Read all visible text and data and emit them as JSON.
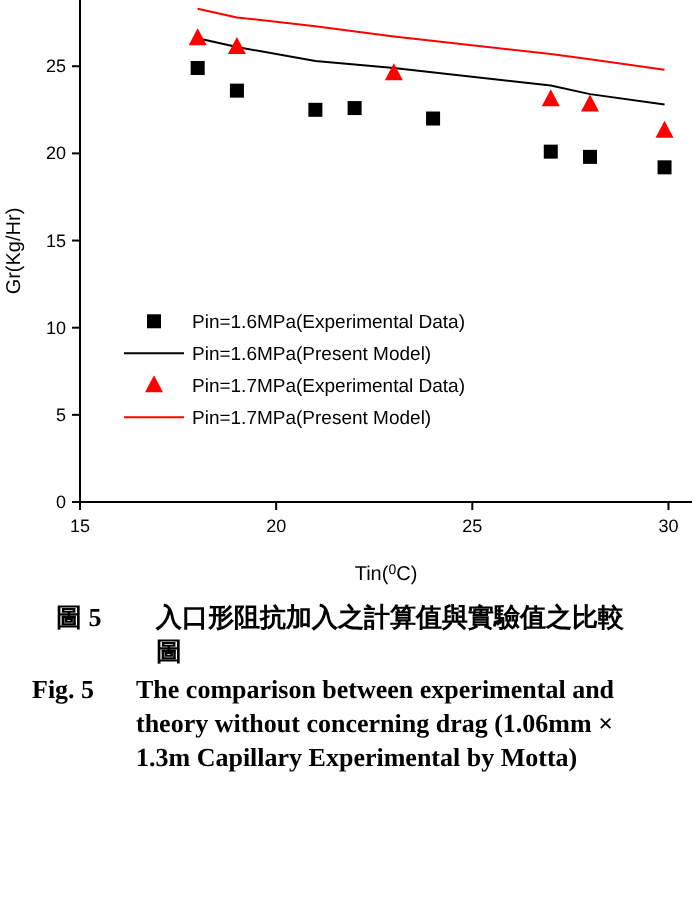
{
  "chart_data": {
    "type": "scatter",
    "xlabel": "Tin($^{0}$C)",
    "ylabel": "Gr(Kg/Hr)",
    "xlim": [
      15,
      30.6
    ],
    "xticks": [
      15,
      20,
      25,
      30
    ],
    "ylim": [
      0,
      28.8
    ],
    "yticks": [
      0,
      5,
      10,
      15,
      20,
      25
    ],
    "legend": "center left",
    "grid": false,
    "series": [
      {
        "name": "Pin=1.6MPa(Experimental Data)",
        "marker": "square",
        "color": "#000000",
        "x": [
          18,
          19,
          21,
          22,
          24,
          27,
          28,
          29.9
        ],
        "values": [
          24.9,
          23.6,
          22.5,
          22.6,
          22.0,
          20.1,
          19.8,
          19.2
        ]
      },
      {
        "name": "Pin=1.6MPa(Present Model)",
        "type": "line",
        "marker": "none",
        "color": "#000000",
        "x": [
          18,
          19,
          21,
          23,
          27,
          28,
          29.9
        ],
        "values": [
          26.6,
          26.1,
          25.3,
          24.9,
          23.9,
          23.4,
          22.8
        ]
      },
      {
        "name": "Pin=1.7MPa(Experimental Data)",
        "marker": "triangle",
        "color": "#ff0000",
        "x": [
          18,
          19,
          23,
          27,
          28,
          29.9
        ],
        "values": [
          26.6,
          26.1,
          24.6,
          23.1,
          22.8,
          21.3
        ]
      },
      {
        "name": "Pin=1.7MPa(Present Model)",
        "type": "line",
        "marker": "none",
        "color": "#ff0000",
        "x": [
          18,
          19,
          21,
          23,
          27,
          28,
          29.9
        ],
        "values": [
          28.3,
          27.8,
          27.3,
          26.7,
          25.7,
          25.4,
          24.8
        ]
      }
    ],
    "annotations": [
      "圖 5 入口形阻抗加入之計算值與實驗值之比較圖",
      "Fig. 5 The comparison between experimental and theory without concerning drag (1.06mm × 1.3m Capillary Experimental by Motta)"
    ]
  }
}
